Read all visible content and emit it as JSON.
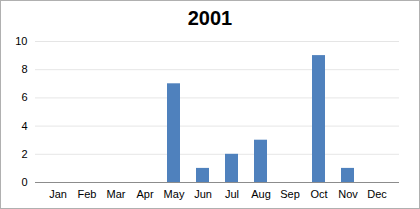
{
  "chart_data": {
    "type": "bar",
    "title": "2001",
    "categories": [
      "Jan",
      "Feb",
      "Mar",
      "Apr",
      "May",
      "Jun",
      "Jul",
      "Aug",
      "Sep",
      "Oct",
      "Nov",
      "Dec"
    ],
    "values": [
      0,
      0,
      0,
      0,
      7,
      1,
      2,
      3,
      0,
      9,
      1,
      0
    ],
    "color": "#4f81bd",
    "ylim": [
      0,
      10
    ],
    "yticks": [
      0,
      2,
      4,
      6,
      8,
      10
    ],
    "grid": true
  }
}
